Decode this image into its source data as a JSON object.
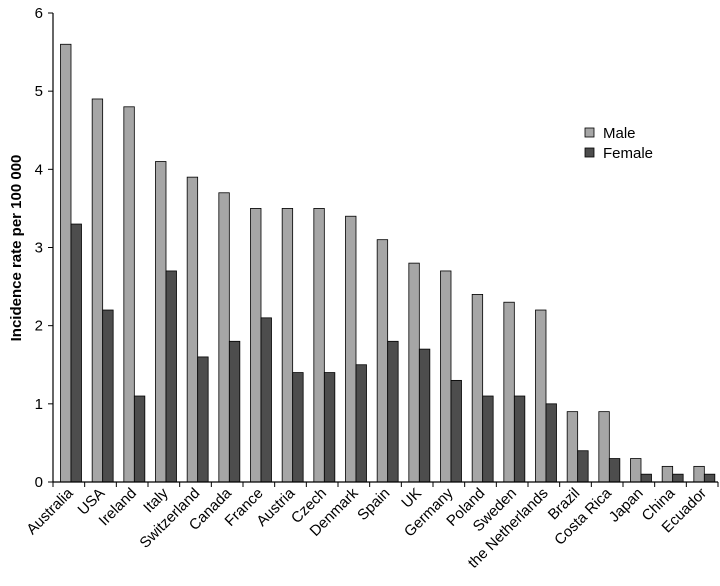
{
  "chart_data": {
    "type": "bar",
    "title": "",
    "xlabel": "",
    "ylabel": "Incidence rate per 100 000",
    "ylim": [
      0,
      6
    ],
    "yticks": [
      0,
      1,
      2,
      3,
      4,
      5,
      6
    ],
    "grid": false,
    "legend_position": "right",
    "categories": [
      "Australia",
      "USA",
      "Ireland",
      "Italy",
      "Switzerland",
      "Canada",
      "France",
      "Austria",
      "Czech",
      "Denmark",
      "Spain",
      "UK",
      "Germany",
      "Poland",
      "Sweden",
      "the Netherlands",
      "Brazil",
      "Costa Rica",
      "Japan",
      "China",
      "Ecuador"
    ],
    "series": [
      {
        "name": "Male",
        "color": "#a6a6a6",
        "values": [
          5.6,
          4.9,
          4.8,
          4.1,
          3.9,
          3.7,
          3.5,
          3.5,
          3.5,
          3.4,
          3.1,
          2.8,
          2.7,
          2.4,
          2.3,
          2.2,
          0.9,
          0.9,
          0.3,
          0.2,
          0.2
        ]
      },
      {
        "name": "Female",
        "color": "#4d4d4d",
        "values": [
          3.3,
          2.2,
          1.1,
          2.7,
          1.6,
          1.8,
          2.1,
          1.4,
          1.4,
          1.5,
          1.8,
          1.7,
          1.3,
          1.1,
          1.1,
          1.0,
          0.4,
          0.3,
          0.1,
          0.1,
          0.1
        ]
      }
    ]
  }
}
